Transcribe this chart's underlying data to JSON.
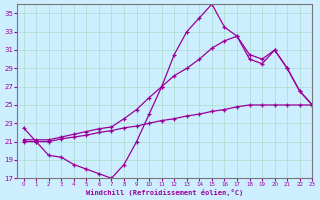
{
  "xlabel": "Windchill (Refroidissement éolien,°C)",
  "line_color": "#990099",
  "background_color": "#cceeff",
  "grid_color": "#aaddcc",
  "xlim": [
    -0.5,
    23
  ],
  "ylim": [
    17,
    36
  ],
  "xticks": [
    0,
    1,
    2,
    3,
    4,
    5,
    6,
    7,
    8,
    9,
    10,
    11,
    12,
    13,
    14,
    15,
    16,
    17,
    18,
    19,
    20,
    21,
    22,
    23
  ],
  "yticks": [
    17,
    19,
    21,
    23,
    25,
    27,
    29,
    31,
    33,
    35
  ],
  "hours": [
    0,
    1,
    2,
    3,
    4,
    5,
    6,
    7,
    8,
    9,
    10,
    11,
    12,
    13,
    14,
    15,
    16,
    17,
    18,
    19,
    20,
    21,
    22,
    23
  ],
  "wc_main": [
    22.5,
    21.0,
    19.5,
    19.3,
    18.5,
    18.0,
    17.5,
    17.0,
    18.5,
    21.0,
    24.0,
    27.0,
    30.5,
    33.0,
    34.5,
    36.0,
    33.5,
    32.5,
    30.5,
    30.0,
    31.0,
    29.0,
    26.5,
    25.0
  ],
  "wc_upper": [
    21.2,
    21.2,
    21.2,
    21.5,
    21.8,
    22.1,
    22.4,
    22.6,
    23.5,
    24.5,
    25.8,
    27.0,
    28.2,
    29.0,
    30.0,
    31.2,
    32.0,
    32.5,
    30.0,
    29.5,
    31.0,
    29.0,
    26.5,
    25.0
  ],
  "wc_lower": [
    21.0,
    21.0,
    21.0,
    21.3,
    21.5,
    21.7,
    22.0,
    22.2,
    22.5,
    22.7,
    23.0,
    23.3,
    23.5,
    23.8,
    24.0,
    24.3,
    24.5,
    24.8,
    25.0,
    25.0,
    25.0,
    25.0,
    25.0,
    25.0
  ]
}
